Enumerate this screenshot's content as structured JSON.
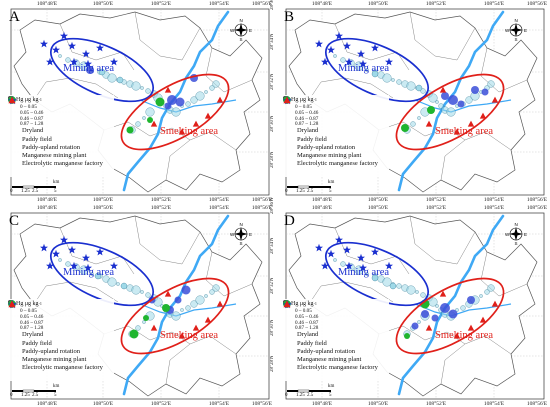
{
  "panels": [
    {
      "label": "A",
      "mining_label": "Mining area",
      "smelting_label": "Smelting area"
    },
    {
      "label": "B",
      "mining_label": "Mining area",
      "smelting_label": "Smelting area"
    },
    {
      "label": "C",
      "mining_label": "Mining area",
      "smelting_label": "Smelting area"
    },
    {
      "label": "D",
      "mining_label": "Mining area",
      "smelting_label": "Smelting area"
    }
  ],
  "axes": {
    "top_ticks": [
      "108°48'E",
      "108°50'E",
      "108°52'E",
      "108°54'E",
      "108°56'E"
    ],
    "bottom_ticks": [
      "108°48'E",
      "108°50'E",
      "108°52'E",
      "108°54'E",
      "108°56'E"
    ],
    "left_ticks": [
      "28°36'N",
      "28°34'N",
      "28°32'N",
      "28°30'N",
      "28°28'N",
      "28°26'N"
    ]
  },
  "legend": {
    "title": "MeHg μg kg",
    "title_sup": "-1",
    "classes": [
      "0 – 0.05",
      "0.05 – 0.46",
      "0.46 – 0.87",
      "0.87 – 1.28"
    ],
    "items": {
      "dryland": "Dryland",
      "paddy": "Paddy field",
      "rotation": "Paddy-upland rotation",
      "mining_plant": "Manganese mining plant",
      "factory": "Electrolytic manganese factory"
    }
  },
  "scale": {
    "unit": "km",
    "ticks": [
      "0",
      "1.25",
      "2.5",
      "5"
    ]
  },
  "compass": {
    "n": "N",
    "s": "S",
    "e": "E",
    "w": "W"
  },
  "colors": {
    "river": "#3fa9f5",
    "boundary": "#555555",
    "mining_ellipse": "#1a2fcf",
    "smelting_ellipse": "#e0201a",
    "paddy": "#3b4fd8",
    "rotation": "#1fb52f",
    "dryland": "#9fd9e8",
    "star": "#1a2fcf",
    "triangle": "#e0201a"
  }
}
